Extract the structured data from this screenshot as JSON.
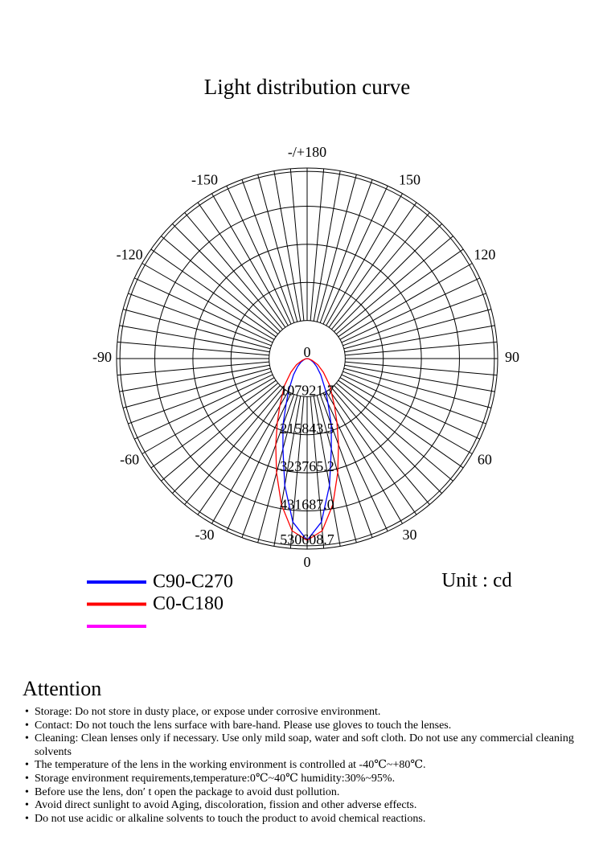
{
  "chart_data": {
    "type": "polar",
    "title": "Light distribution curve",
    "unit_label": "Unit : cd",
    "x": [
      -90,
      -80,
      -70,
      -60,
      -50,
      -40,
      -30,
      -25,
      -20,
      -15,
      -10,
      -5,
      0,
      5,
      10,
      15,
      20,
      25,
      30,
      40,
      50,
      60,
      70,
      80,
      90
    ],
    "series": [
      {
        "name": "C90-C270",
        "color": "#0000ff",
        "values": [
          0,
          5000,
          10000,
          20000,
          35000,
          60000,
          105000,
          140000,
          200000,
          265000,
          365000,
          465000,
          515000,
          465000,
          365000,
          265000,
          200000,
          140000,
          105000,
          60000,
          35000,
          20000,
          10000,
          5000,
          0
        ]
      },
      {
        "name": "C0-C180",
        "color": "#ff0000",
        "values": [
          0,
          5000,
          15000,
          35000,
          60000,
          100000,
          155000,
          200000,
          260000,
          335000,
          420000,
          490000,
          515000,
          490000,
          420000,
          335000,
          260000,
          200000,
          155000,
          100000,
          60000,
          35000,
          15000,
          5000,
          0
        ]
      },
      {
        "name": null,
        "color": "#ff00ff",
        "values": [
          null,
          null,
          null,
          null,
          null,
          null,
          null,
          null,
          null,
          null,
          null,
          null,
          null,
          null,
          null,
          null,
          null,
          null,
          null,
          null,
          null,
          null,
          null,
          null,
          null
        ]
      }
    ],
    "rlim": [
      0,
      540000
    ],
    "rticks": [
      0,
      107921.7,
      215843.5,
      323765.2,
      {
        "value": 431687.0,
        "label": "431687.0"
      },
      530608.7
    ],
    "thetaticks": [
      0,
      30,
      60,
      90,
      120,
      150,
      {
        "value": 180,
        "label": "-/+180"
      },
      -150,
      -120,
      -90,
      -60,
      -30
    ],
    "grid": true
  },
  "attention": {
    "title": "Attention",
    "items": [
      "Storage: Do not store in dusty place, or expose under corrosive environment.",
      "Contact: Do not touch the lens surface with bare-hand. Please use gloves to touch the lenses.",
      "Cleaning: Clean lenses only if necessary. Use only mild soap, water and soft cloth. Do not use any commercial cleaning solvents",
      "The temperature of the lens in the working environment is controlled at -40℃~+80℃.",
      "Storage environment requirements,temperature:0℃~40℃ humidity:30%~95%.",
      "Before use the lens, don′ t open the package to avoid dust pollution.",
      "Avoid direct sunlight to avoid Aging, discoloration, fission and other adverse effects.",
      "Do not use acidic or alkaline solvents to touch the product to avoid  chemical reactions."
    ]
  }
}
